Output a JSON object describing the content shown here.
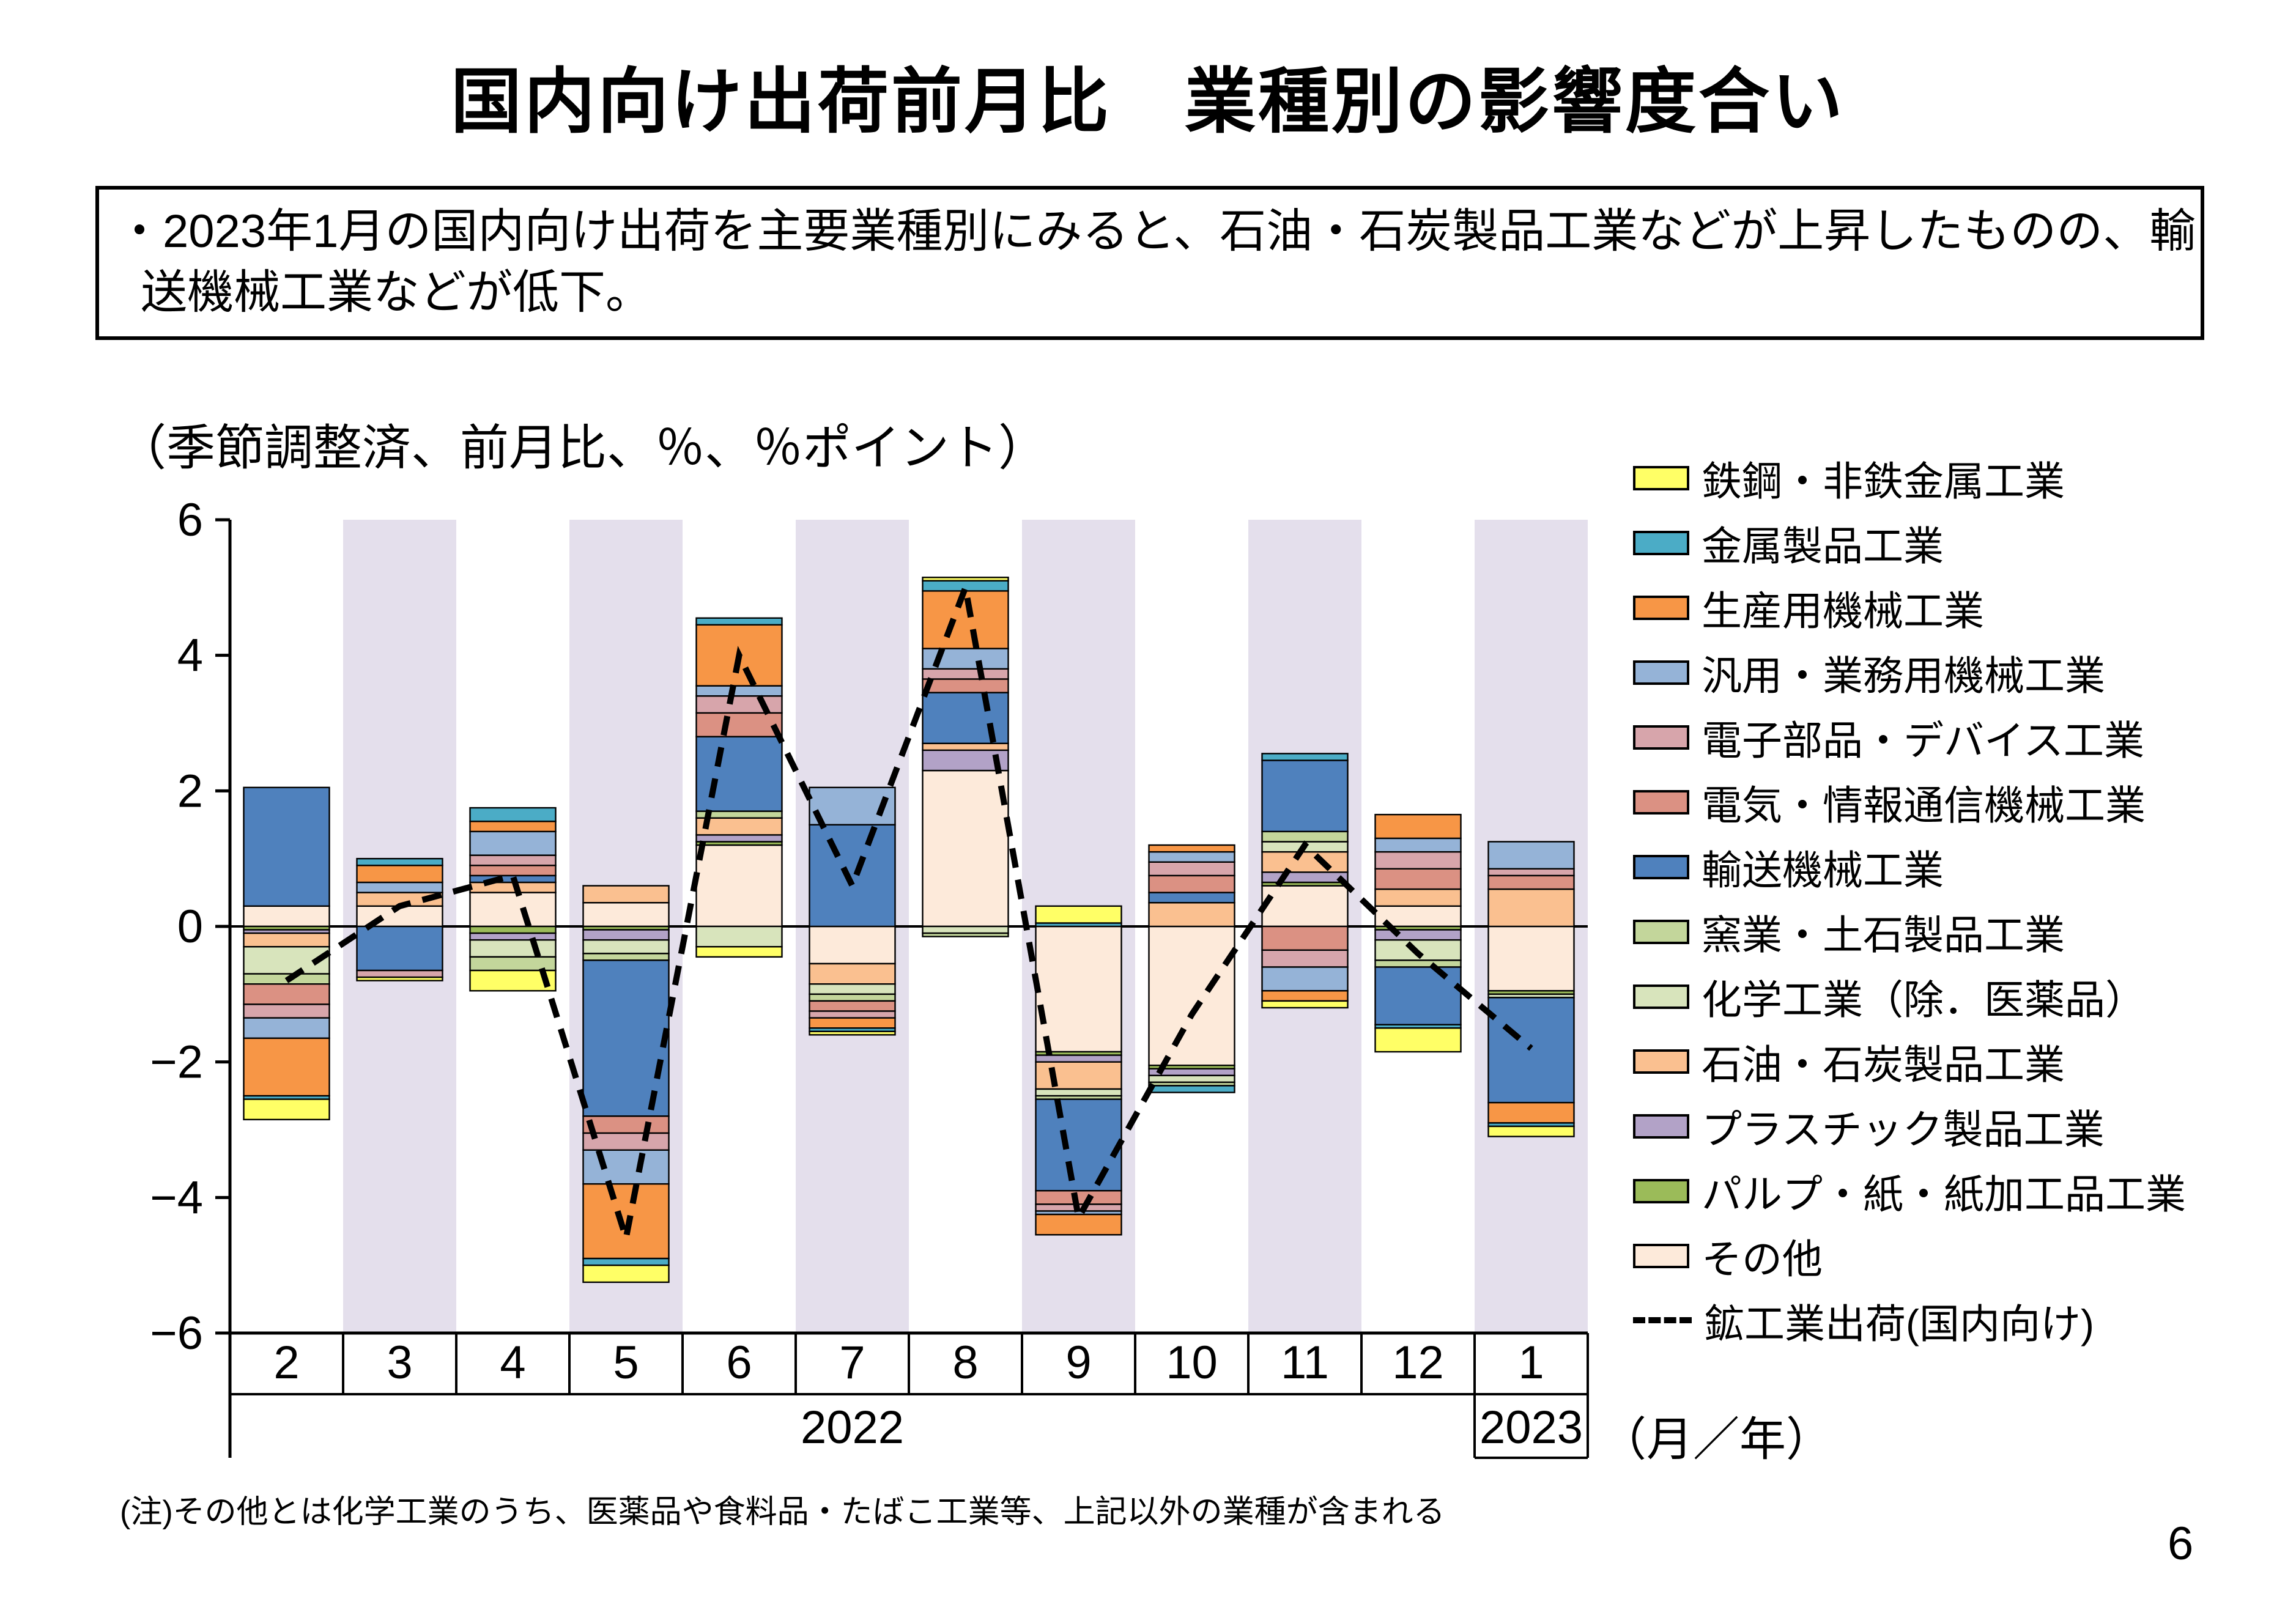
{
  "page": {
    "title": "国内向け出荷前月比　業種別の影響度合い",
    "summary": {
      "line1": "・2023年1月の国内向け出荷を主要業種別にみると、石油・石炭製品工業などが上昇したものの、輸",
      "line2": "送機械工業などが低下。"
    },
    "axis_note": "（季節調整済、前月比、％、％ポイント）",
    "footnote": "(注)その他とは化学工業のうち、医薬品や食料品・たばこ工業等、上記以外の業種が含まれる",
    "page_number": "6",
    "month_year_label": "（月／年）"
  },
  "chart_data": {
    "type": "bar",
    "stacked": true,
    "y_axis": {
      "min": -6,
      "max": 6,
      "tick_values": [
        6,
        4,
        2,
        0,
        -2,
        -4,
        -6
      ],
      "tick_labels": [
        "6",
        "4",
        "2",
        "0",
        "−2",
        "−4",
        "−6"
      ]
    },
    "months": [
      "2",
      "3",
      "4",
      "5",
      "6",
      "7",
      "8",
      "9",
      "10",
      "11",
      "12",
      "1"
    ],
    "year_groups": [
      {
        "label": "2022",
        "from": 0,
        "to": 10
      },
      {
        "label": "2023",
        "from": 11,
        "to": 11
      }
    ],
    "shaded_month_indices": [
      1,
      3,
      5,
      7,
      9,
      11
    ],
    "band_color": "#E4DFEC",
    "series": [
      {
        "name": "鉄鋼・非鉄金属工業",
        "color": "#FFFF66",
        "values": [
          -0.3,
          -0.05,
          -0.3,
          -0.25,
          -0.15,
          -0.05,
          0.05,
          0.25,
          0,
          -0.1,
          -0.35,
          -0.15
        ]
      },
      {
        "name": "金属製品工業",
        "color": "#4BACC6",
        "values": [
          -0.05,
          0.1,
          0.2,
          -0.1,
          0.1,
          -0.05,
          0.15,
          0.05,
          -0.1,
          0.1,
          -0.05,
          -0.05
        ]
      },
      {
        "name": "生産用機械工業",
        "color": "#F79646",
        "values": [
          -0.85,
          0.25,
          0.15,
          -1.1,
          0.9,
          -0.15,
          0.85,
          -0.3,
          0.1,
          -0.15,
          0.35,
          -0.3
        ]
      },
      {
        "name": "汎用・業務用機械工業",
        "color": "#95B3D7",
        "values": [
          -0.3,
          0.15,
          0.35,
          -0.5,
          0.15,
          0.55,
          0.3,
          -0.05,
          0.15,
          -0.35,
          0.2,
          0.4
        ]
      },
      {
        "name": "電子部品・デバイス工業",
        "color": "#D7A5AB",
        "values": [
          -0.2,
          -0.1,
          0.15,
          -0.25,
          0.25,
          -0.1,
          0.15,
          -0.1,
          0.2,
          -0.25,
          0.25,
          0.1
        ]
      },
      {
        "name": "電気・情報通信機械工業",
        "color": "#DB9183",
        "values": [
          -0.3,
          0,
          0.15,
          -0.25,
          0.35,
          -0.15,
          0.2,
          -0.2,
          0.25,
          -0.35,
          0.3,
          0.2
        ]
      },
      {
        "name": "輸送機械工業",
        "color": "#4F81BD",
        "values": [
          1.75,
          -0.65,
          0.1,
          -2.3,
          1.1,
          1.5,
          0.75,
          -1.35,
          0.15,
          1.05,
          -0.85,
          -1.55
        ]
      },
      {
        "name": "窯業・土石製品工業",
        "color": "#C3D69B",
        "values": [
          -0.15,
          0,
          -0.2,
          -0.1,
          0.1,
          -0.1,
          -0.05,
          -0.05,
          -0.05,
          0.15,
          -0.1,
          0
        ]
      },
      {
        "name": "化学工業（除．医薬品）",
        "color": "#D8E4BC",
        "values": [
          -0.4,
          0,
          -0.25,
          -0.2,
          -0.3,
          -0.15,
          -0.1,
          -0.1,
          -0.1,
          0.15,
          -0.3,
          -0.05
        ]
      },
      {
        "name": "石油・石炭製品工業",
        "color": "#FAC090",
        "values": [
          -0.2,
          0.2,
          0.15,
          0.25,
          0.25,
          -0.3,
          0.1,
          -0.4,
          0.35,
          0.3,
          0.25,
          0.55
        ]
      },
      {
        "name": "プラスチック製品工業",
        "color": "#B2A2C7",
        "values": [
          -0.05,
          0,
          -0.1,
          -0.15,
          0.1,
          0,
          0.3,
          -0.1,
          -0.1,
          0.15,
          -0.15,
          0
        ]
      },
      {
        "name": "パルプ・紙・紙加工品工業",
        "color": "#9BBB59",
        "values": [
          -0.05,
          0,
          -0.1,
          -0.05,
          0.05,
          0,
          0,
          -0.05,
          -0.05,
          0.05,
          -0.05,
          -0.05
        ]
      },
      {
        "name": "その他",
        "color": "#FDEADA",
        "values": [
          0.3,
          0.3,
          0.5,
          0.35,
          1.2,
          -0.55,
          2.3,
          -1.85,
          -2.05,
          0.6,
          0.3,
          -0.95
        ]
      }
    ],
    "line_series": {
      "name": "鉱工業出荷(国内向け)",
      "style": "dashed",
      "color": "#000000",
      "values": [
        -0.8,
        0.3,
        0.75,
        -4.6,
        4.0,
        0.6,
        5.0,
        -4.3,
        -1.3,
        1.2,
        -0.4,
        -1.8
      ]
    }
  }
}
